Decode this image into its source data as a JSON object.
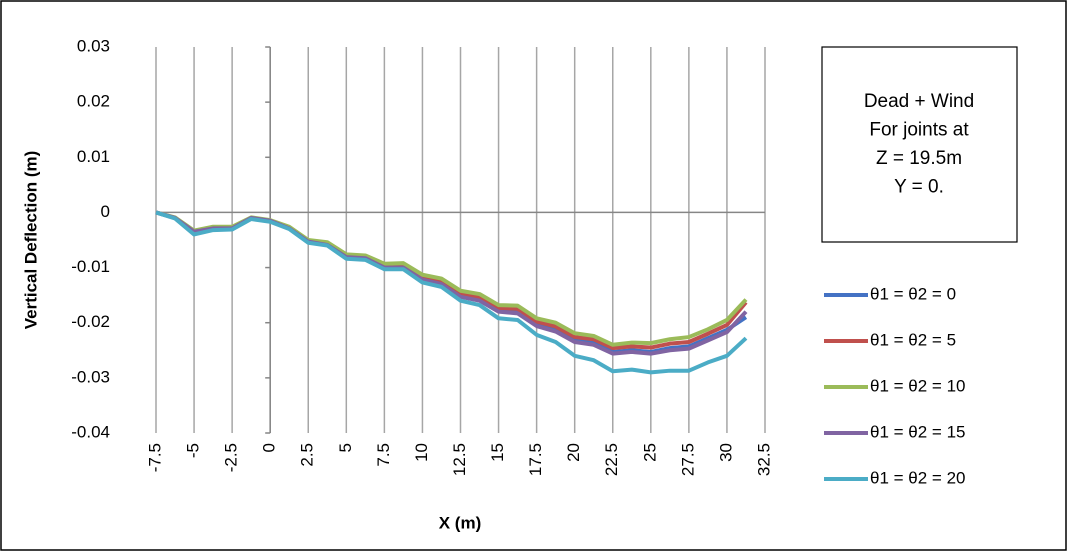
{
  "chart_data": {
    "type": "line",
    "x_label": "X (m)",
    "y_label": "Vertical Deflection (m)",
    "annotation": [
      "Dead + Wind",
      "For joints at",
      "Z = 19.5m",
      "Y = 0."
    ],
    "x": [
      -7.5,
      -6.25,
      -5,
      -3.75,
      -2.5,
      -1.25,
      0,
      1.25,
      2.5,
      3.75,
      5,
      6.25,
      7.5,
      8.75,
      10,
      11.25,
      12.5,
      13.75,
      15,
      16.25,
      17.5,
      18.75,
      20,
      21.25,
      22.5,
      23.75,
      25,
      26.25,
      27.5,
      28.75,
      30,
      31.25
    ],
    "series": [
      {
        "name": "θ1 = θ2 = 0",
        "color": "#4472c4",
        "values": [
          0,
          -0.001,
          -0.0035,
          -0.0028,
          -0.0028,
          -0.001,
          -0.0015,
          -0.0028,
          -0.0052,
          -0.0058,
          -0.008,
          -0.0082,
          -0.0098,
          -0.0098,
          -0.012,
          -0.0128,
          -0.015,
          -0.0158,
          -0.0178,
          -0.018,
          -0.0203,
          -0.0213,
          -0.0232,
          -0.0237,
          -0.0253,
          -0.025,
          -0.0253,
          -0.0246,
          -0.0243,
          -0.0228,
          -0.0213,
          -0.019
        ]
      },
      {
        "name": "θ1 = θ2 = 5",
        "color": "#c0504d",
        "values": [
          0,
          -0.001,
          -0.0034,
          -0.0027,
          -0.0027,
          -0.001,
          -0.0015,
          -0.0027,
          -0.0051,
          -0.0056,
          -0.0078,
          -0.008,
          -0.0096,
          -0.0095,
          -0.0117,
          -0.0124,
          -0.0146,
          -0.0153,
          -0.0173,
          -0.0175,
          -0.0198,
          -0.0207,
          -0.0226,
          -0.023,
          -0.0246,
          -0.0243,
          -0.0245,
          -0.0238,
          -0.0235,
          -0.022,
          -0.0204,
          -0.0163
        ]
      },
      {
        "name": "θ1 = θ2 = 10",
        "color": "#9bbb59",
        "values": [
          0,
          -0.0009,
          -0.0033,
          -0.0026,
          -0.0026,
          -0.0009,
          -0.0014,
          -0.0026,
          -0.005,
          -0.0054,
          -0.0076,
          -0.0078,
          -0.0093,
          -0.0092,
          -0.0113,
          -0.012,
          -0.0142,
          -0.0148,
          -0.0168,
          -0.0169,
          -0.0192,
          -0.02,
          -0.0219,
          -0.0224,
          -0.024,
          -0.0236,
          -0.0237,
          -0.023,
          -0.0226,
          -0.0212,
          -0.0195,
          -0.0158
        ]
      },
      {
        "name": "θ1 = θ2 = 15",
        "color": "#8064a2",
        "values": [
          0,
          -0.001,
          -0.0035,
          -0.0029,
          -0.0029,
          -0.001,
          -0.0015,
          -0.0029,
          -0.0053,
          -0.0059,
          -0.0081,
          -0.0083,
          -0.01,
          -0.01,
          -0.0122,
          -0.013,
          -0.0153,
          -0.016,
          -0.018,
          -0.0183,
          -0.0206,
          -0.0216,
          -0.0235,
          -0.024,
          -0.0256,
          -0.0253,
          -0.0256,
          -0.025,
          -0.0247,
          -0.0232,
          -0.0217,
          -0.018
        ]
      },
      {
        "name": "θ1 = θ2 = 20",
        "color": "#4bacc6",
        "values": [
          0,
          -0.0011,
          -0.004,
          -0.0032,
          -0.0031,
          -0.0012,
          -0.0017,
          -0.003,
          -0.0055,
          -0.006,
          -0.0084,
          -0.0086,
          -0.0103,
          -0.0103,
          -0.0127,
          -0.0135,
          -0.016,
          -0.0168,
          -0.0192,
          -0.0195,
          -0.0222,
          -0.0235,
          -0.026,
          -0.0268,
          -0.0288,
          -0.0285,
          -0.029,
          -0.0287,
          -0.0287,
          -0.0272,
          -0.026,
          -0.0228
        ]
      }
    ],
    "xlim": [
      -7.5,
      32.5
    ],
    "xticks": [
      -7.5,
      -5,
      -2.5,
      0,
      2.5,
      5,
      7.5,
      10,
      12.5,
      15,
      17.5,
      20,
      22.5,
      25,
      27.5,
      30,
      32.5
    ],
    "ylim": [
      -0.04,
      0.03
    ],
    "yticks": [
      0.03,
      0.02,
      0.01,
      0,
      -0.01,
      -0.02,
      -0.03,
      -0.04
    ],
    "grid": "x"
  }
}
